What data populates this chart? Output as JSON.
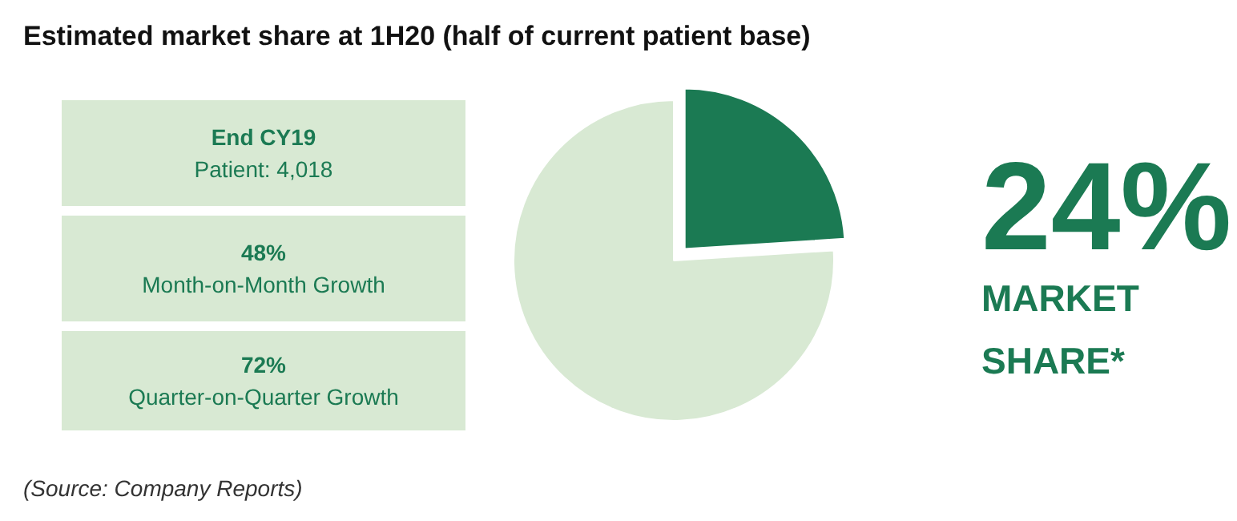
{
  "chart_data": {
    "type": "pie",
    "title": "Estimated market share at 1H20 (half of current patient base)",
    "categories": [
      null,
      null
    ],
    "values": [
      24,
      76
    ],
    "colors": [
      "#1b7a53",
      "#d8e9d3"
    ],
    "value_labels": [
      "24%",
      null
    ],
    "annotations": [
      "End CY19",
      "Patient: 4,018",
      "48%",
      "Month-on-Month Growth",
      "72%",
      "Quarter-on-Quarter Growth",
      "MARKET\nSHARE*",
      "(Source: Company Reports)"
    ]
  }
}
